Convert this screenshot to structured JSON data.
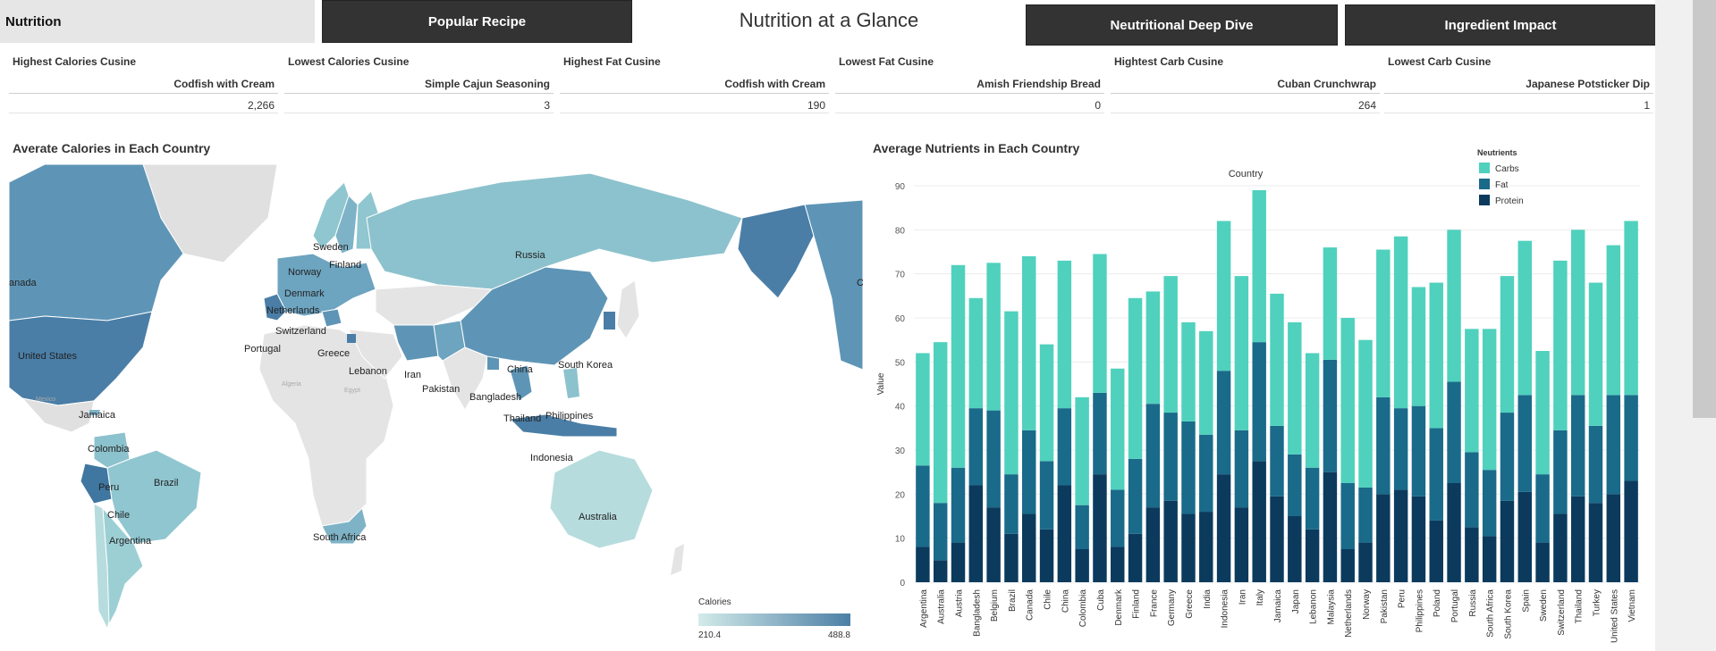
{
  "header": {
    "tabs": [
      {
        "label": "Nutrition",
        "active": true
      },
      {
        "label": "Popular Recipe",
        "active": false
      },
      {
        "label": "Neutritional Deep Dive",
        "active": false
      },
      {
        "label": "Ingredient Impact",
        "active": false
      }
    ],
    "title": "Nutrition at a Glance"
  },
  "kpis": [
    {
      "title": "Highest Calories Cusine",
      "dish": "Codfish with Cream",
      "value": "2,266"
    },
    {
      "title": "Lowest Calories Cusine",
      "dish": "Simple Cajun Seasoning",
      "value": "3"
    },
    {
      "title": "Highest Fat Cusine",
      "dish": "Codfish with Cream",
      "value": "190"
    },
    {
      "title": "Lowest Fat Cusine",
      "dish": "Amish Friendship Bread",
      "value": "0"
    },
    {
      "title": "Hightest Carb Cusine",
      "dish": "Cuban Crunchwrap",
      "value": "264"
    },
    {
      "title": "Lowest Carb Cusine",
      "dish": "Japanese Potsticker Dip",
      "value": "1"
    }
  ],
  "map": {
    "title": "Averate Calories in Each Country",
    "legend": {
      "title": "Calories",
      "min": "210.4",
      "max": "488.8",
      "color_low": "#d3ebe9",
      "color_high": "#4c7fa6"
    },
    "labels": [
      "anada",
      "United States",
      "Jamaica",
      "Colombia",
      "Peru",
      "Chile",
      "Brazil",
      "Argentina",
      "Norway",
      "Sweden",
      "Finland",
      "Denmark",
      "Netherlands",
      "Switzerland",
      "Portugal",
      "Greece",
      "Lebanon",
      "Iran",
      "Pakistan",
      "Russia",
      "China",
      "South Korea",
      "Bangladesh",
      "Thailand",
      "Philippines",
      "Indonesia",
      "Australia",
      "South Africa",
      "C"
    ],
    "faint_labels": [
      "Algeria",
      "Egypt",
      "Mexico"
    ]
  },
  "chart_data": {
    "type": "bar",
    "stacked": true,
    "title": "Average Nutrients in Each Country",
    "xlabel": "Country",
    "ylabel": "Value",
    "ylim": [
      0,
      90
    ],
    "yticks": [
      0,
      10,
      20,
      30,
      40,
      50,
      60,
      70,
      80,
      90
    ],
    "legend": {
      "title": "Neutrients",
      "position": "top-right"
    },
    "categories": [
      "Argentina",
      "Australia",
      "Austria",
      "Bangladesh",
      "Belgium",
      "Brazil",
      "Canada",
      "Chile",
      "China",
      "Colombia",
      "Cuba",
      "Denmark",
      "Finland",
      "France",
      "Germany",
      "Greece",
      "India",
      "Indonesia",
      "Iran",
      "Italy",
      "Jamaica",
      "Japan",
      "Lebanon",
      "Malaysia",
      "Netherlands",
      "Norway",
      "Pakistan",
      "Peru",
      "Philippines",
      "Poland",
      "Portugal",
      "Russia",
      "South Africa",
      "South Korea",
      "Spain",
      "Sweden",
      "Switzerland",
      "Thailand",
      "Turkey",
      "United States",
      "Vietnam"
    ],
    "series": [
      {
        "name": "Protein",
        "color": "#0b3a5d",
        "values": [
          8,
          5,
          9,
          22,
          17,
          11,
          15.5,
          12,
          22,
          7.5,
          24.5,
          8,
          11,
          17,
          18.5,
          15.5,
          16,
          24.5,
          17,
          27.5,
          19.5,
          15,
          12,
          25,
          7.5,
          9,
          20,
          21,
          19.5,
          14,
          22.5,
          12.5,
          10.5,
          18.5,
          20.5,
          9,
          15.5,
          19.5,
          18,
          20,
          23
        ]
      },
      {
        "name": "Fat",
        "color": "#1a6a8a",
        "values": [
          18.5,
          13,
          17,
          17.5,
          22,
          13.5,
          19,
          15.5,
          17.5,
          10,
          18.5,
          13,
          17,
          23.5,
          20,
          21,
          17.5,
          23.5,
          17.5,
          27,
          16,
          14,
          14,
          25.5,
          15,
          12.5,
          22,
          18.5,
          20.5,
          21,
          23,
          17,
          15,
          20,
          22,
          15.5,
          19,
          23,
          17.5,
          22.5,
          19.5
        ]
      },
      {
        "name": "Carbs",
        "color": "#4fd1bd",
        "values": [
          25.5,
          36.5,
          46,
          25,
          33.5,
          37,
          39.5,
          26.5,
          33.5,
          24.5,
          31.5,
          27.5,
          36.5,
          25.5,
          31,
          22.5,
          23.5,
          34,
          35,
          34.5,
          30,
          30,
          26,
          25.5,
          37.5,
          33.5,
          33.5,
          39,
          27,
          33,
          34.5,
          28,
          32,
          31,
          35,
          28,
          38.5,
          37.5,
          32.5,
          34,
          39.5
        ]
      }
    ]
  }
}
